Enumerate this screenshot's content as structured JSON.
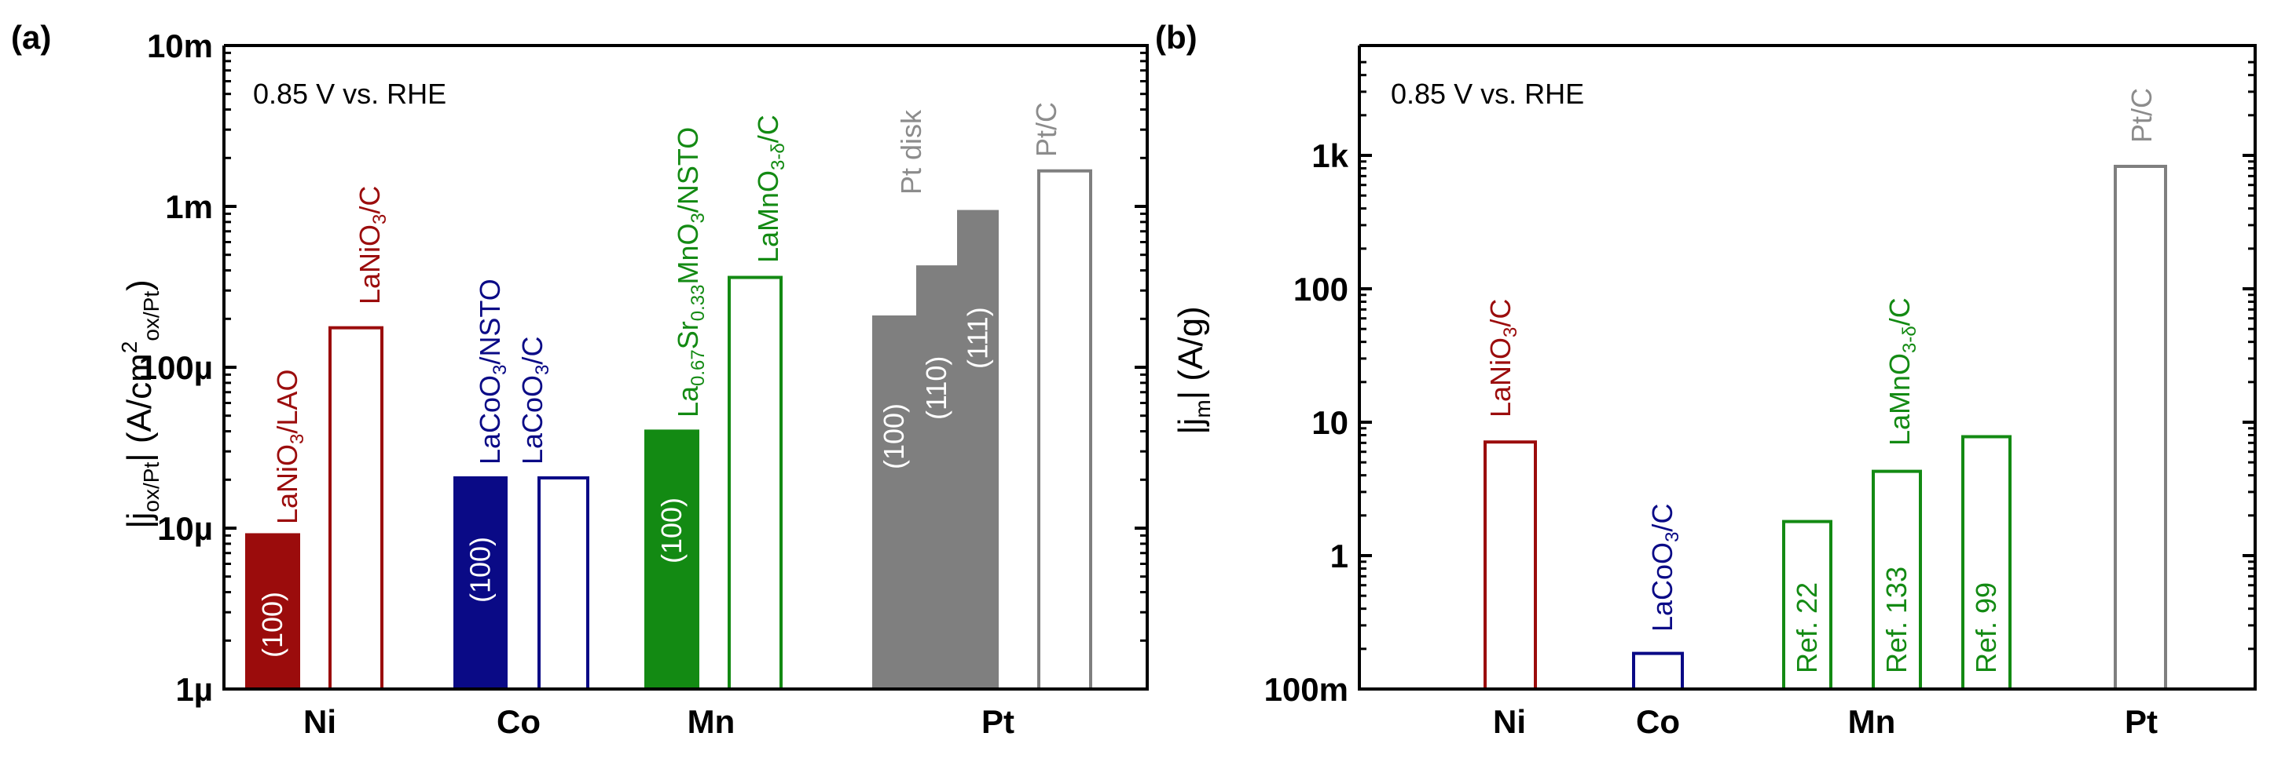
{
  "colors": {
    "ni": "#9b0c0c",
    "co": "#0a0a86",
    "mn": "#138a13",
    "pt": "#7f7f7f",
    "pt_label": "#8c8c8c",
    "axis": "#000000"
  },
  "chart_data": [
    {
      "type": "bar",
      "panel": "(a)",
      "annotation": "0.85 V vs. RHE",
      "yscale": "log",
      "ylim": [
        1e-06,
        0.01
      ],
      "ylabel": "|j_ox/Pt| (A/cm²_ox/Pt)",
      "ylabel_parts": {
        "main": "|j",
        "sub": "ox/Pt",
        "mid": "| (A/cm",
        "sup": "2",
        "sub2": "ox/Pt",
        "end": ")"
      },
      "yticks": [
        {
          "value": 1e-06,
          "label": "1µ"
        },
        {
          "value": 1e-05,
          "label": "10µ"
        },
        {
          "value": 0.0001,
          "label": "100µ"
        },
        {
          "value": 0.001,
          "label": "1m"
        },
        {
          "value": 0.01,
          "label": "10m"
        }
      ],
      "categories": [
        "Ni",
        "Co",
        "Mn",
        "Pt"
      ],
      "bars": [
        {
          "group": "Ni",
          "value": 9.3e-06,
          "filled": true,
          "color": "ni",
          "label": "LaNiO₃/LAO",
          "inner": "(100)"
        },
        {
          "group": "Ni",
          "value": 0.00018,
          "filled": false,
          "color": "ni",
          "label": "LaNiO₃/C",
          "inner": ""
        },
        {
          "group": "Co",
          "value": 2.1e-05,
          "filled": true,
          "color": "co",
          "label": "LaCoO₃/NSTO",
          "inner": "(100)"
        },
        {
          "group": "Co",
          "value": 2.1e-05,
          "filled": false,
          "color": "co",
          "label": "LaCoO₃/C",
          "inner": ""
        },
        {
          "group": "Mn",
          "value": 4.1e-05,
          "filled": true,
          "color": "mn",
          "label": "La₀.₆₇Sr₀.₃₃MnO₃/NSTO",
          "inner": "(100)"
        },
        {
          "group": "Mn",
          "value": 0.00037,
          "filled": false,
          "color": "mn",
          "label": "LaMnO₃₋δ/C",
          "inner": ""
        },
        {
          "group": "Pt",
          "value": 0.00021,
          "filled": true,
          "color": "pt",
          "label": "",
          "inner": "(100)"
        },
        {
          "group": "Pt",
          "value": 0.00043,
          "filled": true,
          "color": "pt",
          "label": "",
          "inner": "(110)"
        },
        {
          "group": "Pt",
          "value": 0.00095,
          "filled": true,
          "color": "pt",
          "label": "",
          "inner": "(111)"
        },
        {
          "group": "Pt",
          "value": 0.0017,
          "filled": false,
          "color": "pt",
          "label": "Pt/C",
          "inner": ""
        }
      ],
      "extra_labels": [
        {
          "text": "Pt disk",
          "color": "pt"
        }
      ]
    },
    {
      "type": "bar",
      "panel": "(b)",
      "annotation": "0.85 V vs. RHE",
      "yscale": "log",
      "ylim": [
        0.1,
        5000
      ],
      "ylabel": "|j_m| (A/g)",
      "ylabel_parts": {
        "main": "|j",
        "sub": "m",
        "end": "| (A/g)"
      },
      "yticks": [
        {
          "value": 0.1,
          "label": "100m"
        },
        {
          "value": 1,
          "label": "1"
        },
        {
          "value": 10,
          "label": "10"
        },
        {
          "value": 100,
          "label": "100"
        },
        {
          "value": 1000,
          "label": "1k"
        }
      ],
      "categories": [
        "Ni",
        "Co",
        "Mn",
        "Pt"
      ],
      "bars": [
        {
          "group": "Ni",
          "value": 7.3,
          "filled": false,
          "color": "ni",
          "label": "LaNiO₃/C",
          "inner": ""
        },
        {
          "group": "Co",
          "value": 0.19,
          "filled": false,
          "color": "co",
          "label": "LaCoO₃/C",
          "inner": ""
        },
        {
          "group": "Mn",
          "value": 1.85,
          "filled": false,
          "color": "mn",
          "label": "",
          "inner": "Ref. 22"
        },
        {
          "group": "Mn",
          "value": 4.4,
          "filled": false,
          "color": "mn",
          "label": "LaMnO₃₋δ/C",
          "inner": "Ref. 133"
        },
        {
          "group": "Mn",
          "value": 8.0,
          "filled": false,
          "color": "mn",
          "label": "",
          "inner": "Ref. 99"
        },
        {
          "group": "Pt",
          "value": 850,
          "filled": false,
          "color": "pt",
          "label": "Pt/C",
          "inner": ""
        }
      ]
    }
  ]
}
